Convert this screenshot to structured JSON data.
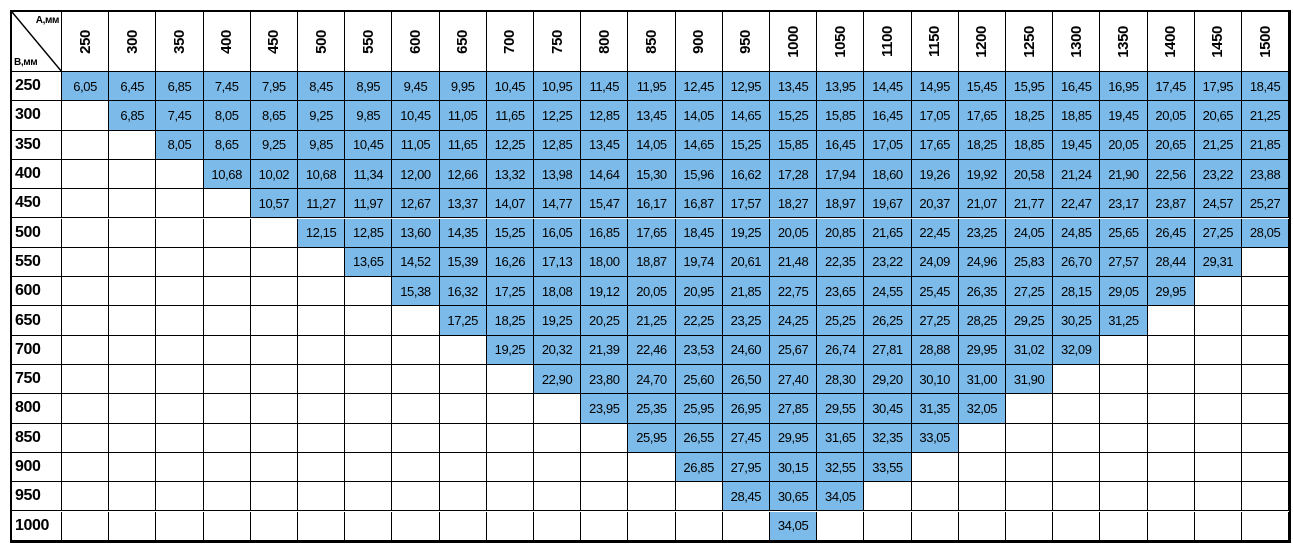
{
  "table": {
    "corner": {
      "a": "A,мм",
      "b": "B,мм"
    },
    "columns": [
      "250",
      "300",
      "350",
      "400",
      "450",
      "500",
      "550",
      "600",
      "650",
      "700",
      "750",
      "800",
      "850",
      "900",
      "950",
      "1000",
      "1050",
      "1100",
      "1150",
      "1200",
      "1250",
      "1300",
      "1350",
      "1400",
      "1450",
      "1500"
    ],
    "rows": [
      {
        "label": "250",
        "cells": [
          "6,05",
          "6,45",
          "6,85",
          "7,45",
          "7,95",
          "8,45",
          "8,95",
          "9,45",
          "9,95",
          "10,45",
          "10,95",
          "11,45",
          "11,95",
          "12,45",
          "12,95",
          "13,45",
          "13,95",
          "14,45",
          "14,95",
          "15,45",
          "15,95",
          "16,45",
          "16,95",
          "17,45",
          "17,95",
          "18,45"
        ]
      },
      {
        "label": "300",
        "cells": [
          null,
          "6,85",
          "7,45",
          "8,05",
          "8,65",
          "9,25",
          "9,85",
          "10,45",
          "11,05",
          "11,65",
          "12,25",
          "12,85",
          "13,45",
          "14,05",
          "14,65",
          "15,25",
          "15,85",
          "16,45",
          "17,05",
          "17,65",
          "18,25",
          "18,85",
          "19,45",
          "20,05",
          "20,65",
          "21,25"
        ]
      },
      {
        "label": "350",
        "cells": [
          null,
          null,
          "8,05",
          "8,65",
          "9,25",
          "9,85",
          "10,45",
          "11,05",
          "11,65",
          "12,25",
          "12,85",
          "13,45",
          "14,05",
          "14,65",
          "15,25",
          "15,85",
          "16,45",
          "17,05",
          "17,65",
          "18,25",
          "18,85",
          "19,45",
          "20,05",
          "20,65",
          "21,25",
          "21,85"
        ]
      },
      {
        "label": "400",
        "cells": [
          null,
          null,
          null,
          "10,68",
          "10,02",
          "10,68",
          "11,34",
          "12,00",
          "12,66",
          "13,32",
          "13,98",
          "14,64",
          "15,30",
          "15,96",
          "16,62",
          "17,28",
          "17,94",
          "18,60",
          "19,26",
          "19,92",
          "20,58",
          "21,24",
          "21,90",
          "22,56",
          "23,22",
          "23,88"
        ]
      },
      {
        "label": "450",
        "cells": [
          null,
          null,
          null,
          null,
          "10,57",
          "11,27",
          "11,97",
          "12,67",
          "13,37",
          "14,07",
          "14,77",
          "15,47",
          "16,17",
          "16,87",
          "17,57",
          "18,27",
          "18,97",
          "19,67",
          "20,37",
          "21,07",
          "21,77",
          "22,47",
          "23,17",
          "23,87",
          "24,57",
          "25,27"
        ]
      },
      {
        "label": "500",
        "cells": [
          null,
          null,
          null,
          null,
          null,
          "12,15",
          "12,85",
          "13,60",
          "14,35",
          "15,25",
          "16,05",
          "16,85",
          "17,65",
          "18,45",
          "19,25",
          "20,05",
          "20,85",
          "21,65",
          "22,45",
          "23,25",
          "24,05",
          "24,85",
          "25,65",
          "26,45",
          "27,25",
          "28,05"
        ]
      },
      {
        "label": "550",
        "cells": [
          null,
          null,
          null,
          null,
          null,
          null,
          "13,65",
          "14,52",
          "15,39",
          "16,26",
          "17,13",
          "18,00",
          "18,87",
          "19,74",
          "20,61",
          "21,48",
          "22,35",
          "23,22",
          "24,09",
          "24,96",
          "25,83",
          "26,70",
          "27,57",
          "28,44",
          "29,31",
          null
        ]
      },
      {
        "label": "600",
        "cells": [
          null,
          null,
          null,
          null,
          null,
          null,
          null,
          "15,38",
          "16,32",
          "17,25",
          "18,08",
          "19,12",
          "20,05",
          "20,95",
          "21,85",
          "22,75",
          "23,65",
          "24,55",
          "25,45",
          "26,35",
          "27,25",
          "28,15",
          "29,05",
          "29,95",
          null,
          null
        ]
      },
      {
        "label": "650",
        "cells": [
          null,
          null,
          null,
          null,
          null,
          null,
          null,
          null,
          "17,25",
          "18,25",
          "19,25",
          "20,25",
          "21,25",
          "22,25",
          "23,25",
          "24,25",
          "25,25",
          "26,25",
          "27,25",
          "28,25",
          "29,25",
          "30,25",
          "31,25",
          null,
          null,
          null
        ]
      },
      {
        "label": "700",
        "cells": [
          null,
          null,
          null,
          null,
          null,
          null,
          null,
          null,
          null,
          "19,25",
          "20,32",
          "21,39",
          "22,46",
          "23,53",
          "24,60",
          "25,67",
          "26,74",
          "27,81",
          "28,88",
          "29,95",
          "31,02",
          "32,09",
          null,
          null,
          null,
          null
        ]
      },
      {
        "label": "750",
        "cells": [
          null,
          null,
          null,
          null,
          null,
          null,
          null,
          null,
          null,
          null,
          "22,90",
          "23,80",
          "24,70",
          "25,60",
          "26,50",
          "27,40",
          "28,30",
          "29,20",
          "30,10",
          "31,00",
          "31,90",
          null,
          null,
          null,
          null,
          null
        ]
      },
      {
        "label": "800",
        "cells": [
          null,
          null,
          null,
          null,
          null,
          null,
          null,
          null,
          null,
          null,
          null,
          "23,95",
          "25,35",
          "25,95",
          "26,95",
          "27,85",
          "29,55",
          "30,45",
          "31,35",
          "32,05",
          null,
          null,
          null,
          null,
          null,
          null
        ]
      },
      {
        "label": "850",
        "cells": [
          null,
          null,
          null,
          null,
          null,
          null,
          null,
          null,
          null,
          null,
          null,
          null,
          "25,95",
          "26,55",
          "27,45",
          "29,95",
          "31,65",
          "32,35",
          "33,05",
          null,
          null,
          null,
          null,
          null,
          null,
          null
        ]
      },
      {
        "label": "900",
        "cells": [
          null,
          null,
          null,
          null,
          null,
          null,
          null,
          null,
          null,
          null,
          null,
          null,
          null,
          "26,85",
          "27,95",
          "30,15",
          "32,55",
          "33,55",
          null,
          null,
          null,
          null,
          null,
          null,
          null,
          null
        ]
      },
      {
        "label": "950",
        "cells": [
          null,
          null,
          null,
          null,
          null,
          null,
          null,
          null,
          null,
          null,
          null,
          null,
          null,
          null,
          "28,45",
          "30,65",
          "34,05",
          null,
          null,
          null,
          null,
          null,
          null,
          null,
          null,
          null
        ]
      },
      {
        "label": "1000",
        "cells": [
          null,
          null,
          null,
          null,
          null,
          null,
          null,
          null,
          null,
          null,
          null,
          null,
          null,
          null,
          null,
          "34,05",
          null,
          null,
          null,
          null,
          null,
          null,
          null,
          null,
          null,
          null
        ]
      }
    ]
  }
}
